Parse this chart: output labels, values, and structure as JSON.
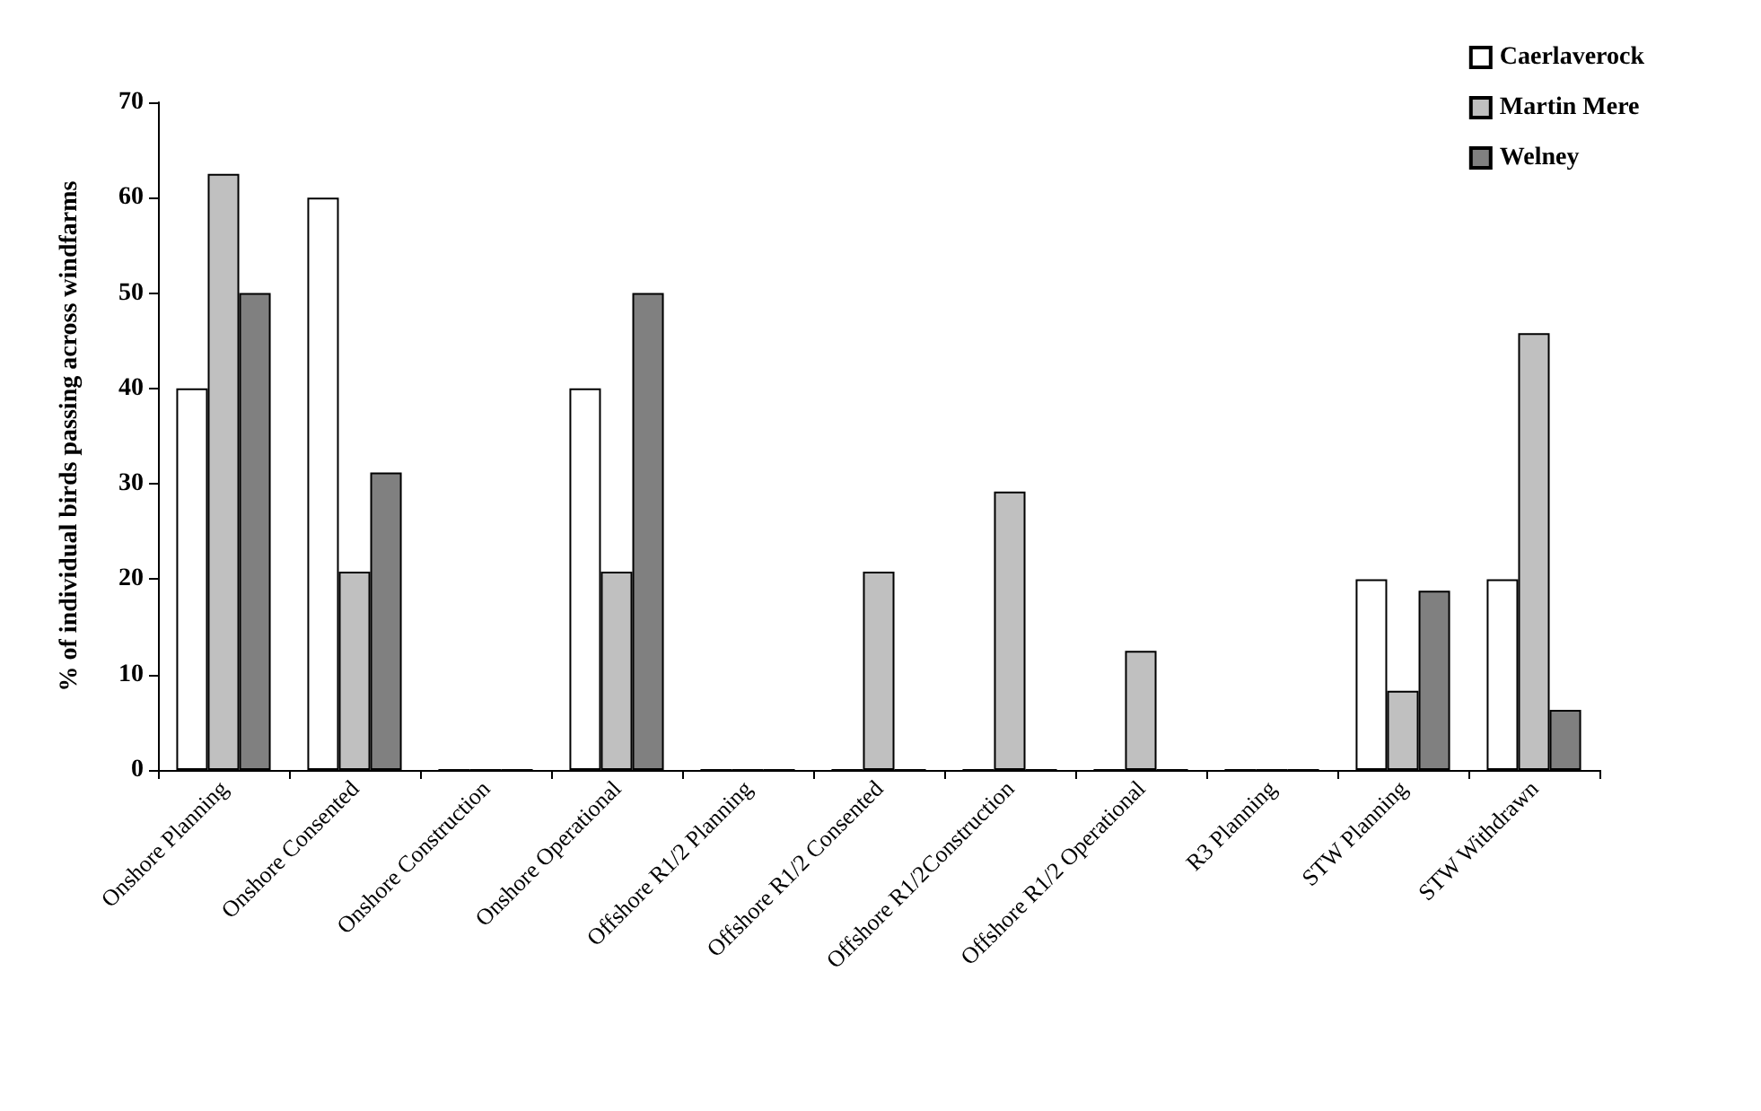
{
  "chart_data": {
    "type": "bar",
    "ylabel": "% of individual birds passing across windfarms",
    "categories": [
      "Onshore Planning",
      "Onshore Consented",
      "Onshore Construction",
      "Onshore Operational",
      "Offshore R1/2 Planning",
      "Offshore R1/2 Consented",
      "Offshore R1/2Construction",
      "Offshore R1/2 Operational",
      "R3 Planning",
      "STW Planning",
      "STW Withdrawn"
    ],
    "series": [
      {
        "name": "Caerlaverock",
        "color": "#ffffff",
        "values": [
          40,
          60,
          0,
          40,
          0,
          0,
          0,
          0,
          0,
          20,
          20
        ]
      },
      {
        "name": "Martin Mere",
        "color": "#c0c0c0",
        "values": [
          62.5,
          20.8,
          0,
          20.8,
          0,
          20.8,
          29.2,
          12.5,
          0,
          8.3,
          45.8
        ]
      },
      {
        "name": "Welney",
        "color": "#808080",
        "values": [
          50,
          31.2,
          0,
          50,
          0,
          0,
          0,
          0,
          0,
          18.8,
          6.3
        ]
      }
    ],
    "ylim": [
      0,
      70
    ],
    "yticks": [
      0,
      10,
      20,
      30,
      40,
      50,
      60,
      70
    ],
    "grid": false,
    "legend": "top right"
  }
}
